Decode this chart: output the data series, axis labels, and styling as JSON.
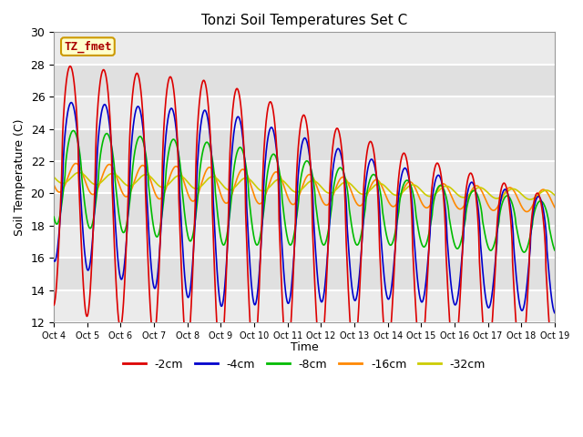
{
  "title": "Tonzi Soil Temperatures Set C",
  "xlabel": "Time",
  "ylabel": "Soil Temperature (C)",
  "ylim": [
    12,
    30
  ],
  "xlim": [
    0,
    15
  ],
  "background_color": "#ffffff",
  "plot_bg_color": "#e0e0e0",
  "annotation_text": "TZ_fmet",
  "annotation_box_color": "#ffffcc",
  "annotation_text_color": "#aa0000",
  "annotation_border_color": "#cc9900",
  "x_tick_labels": [
    "Oct 4",
    "Oct 5",
    "Oct 6",
    "Oct 7",
    "Oct 8",
    "Oct 9",
    "Oct 10",
    "Oct 11",
    "Oct 12",
    "Oct 13",
    "Oct 14",
    "Oct 15",
    "Oct 16",
    "Oct 17",
    "Oct 18",
    "Oct 19"
  ],
  "yticks": [
    12,
    14,
    16,
    18,
    20,
    22,
    24,
    26,
    28,
    30
  ],
  "series_colors": {
    "-2cm": "#dd0000",
    "-4cm": "#0000cc",
    "-8cm": "#00bb00",
    "-16cm": "#ff8800",
    "-32cm": "#cccc00"
  },
  "legend_labels": [
    "-2cm",
    "-4cm",
    "-8cm",
    "-16cm",
    "-32cm"
  ],
  "legend_colors": [
    "#dd0000",
    "#0000cc",
    "#00bb00",
    "#ff8800",
    "#cccc00"
  ],
  "grid_color": "#ffffff",
  "grid_lw": 1.5,
  "series_lw": 1.2
}
